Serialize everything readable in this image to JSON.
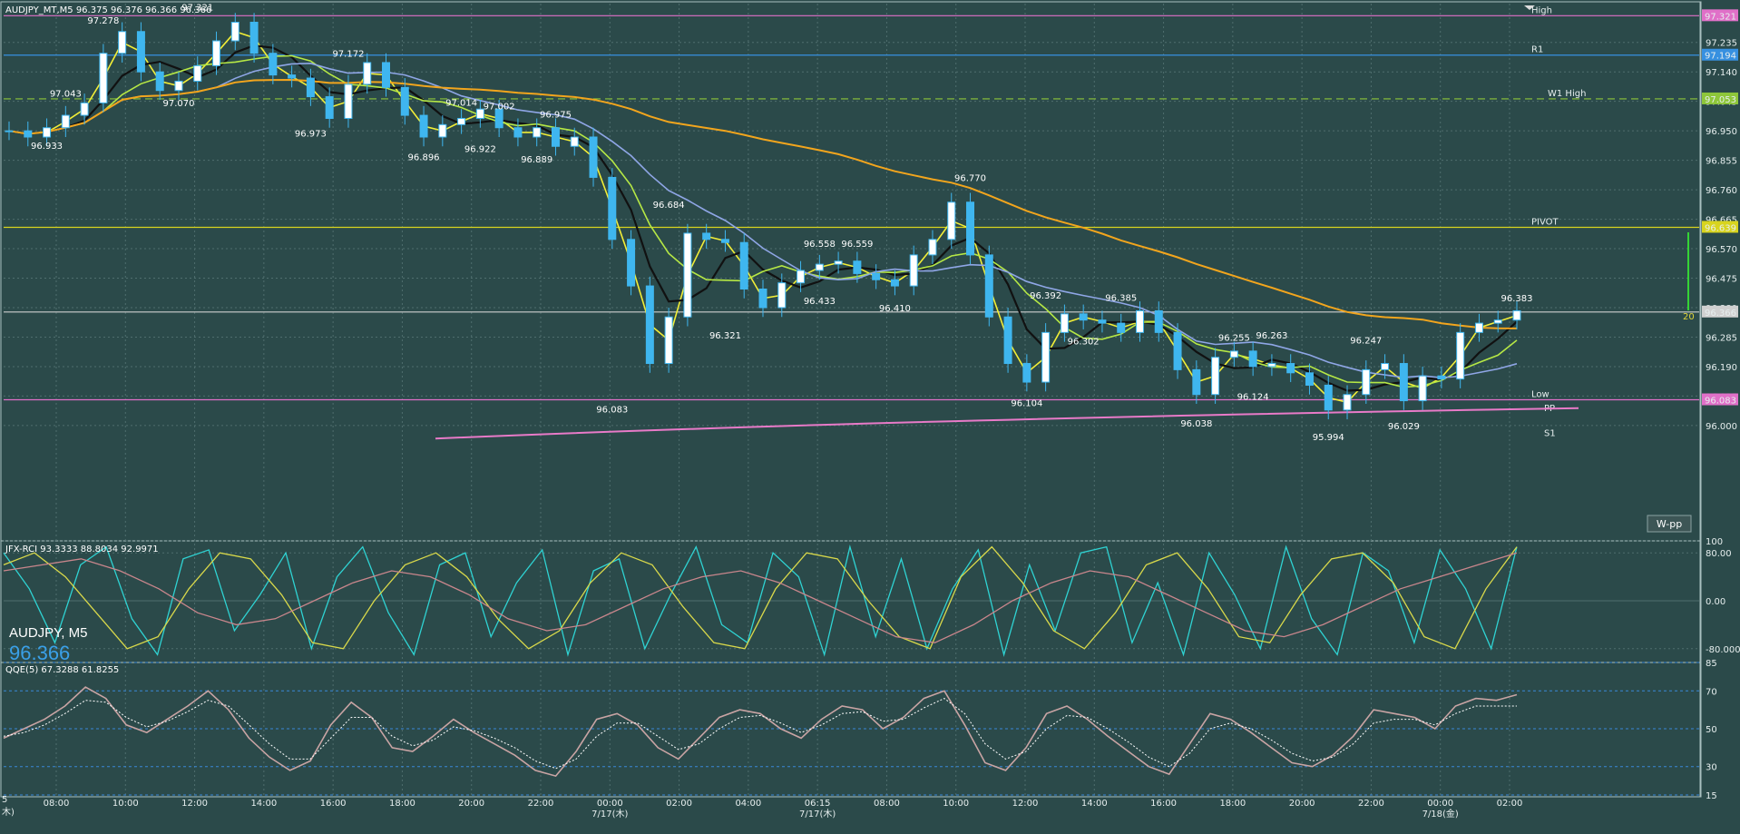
{
  "header": {
    "main_info": "AUDJPY_MT,M5  96.375 96.376 96.366 96.366",
    "rci_info": "JFX-RCI 93.3333 88.8034 92.9971",
    "qqe_info": "QQE(5) 67.3288 61.8255",
    "symbol_label": "AUDJPY, M5",
    "current_price": "96.366",
    "w_pp_button": "W-pp",
    "range_marker": "20"
  },
  "colors": {
    "background": "#2b4a4a",
    "grid": "#4f6e6e",
    "candle": "#3fb6ef",
    "black_line": "#111111",
    "yellow_line": "#f2ee37",
    "green_line": "#b6e845",
    "blue_line": "#8fa6e6",
    "orange_line": "#f2a51d",
    "high_line": "#e070c8",
    "r1_line": "#3790e0",
    "w1high_line": "#8ec63a",
    "pivot_line": "#d8d41e",
    "low_line": "#e070c8",
    "rci_cyan": "#2fd3d3",
    "rci_yellow": "#d9d94a",
    "rci_pink": "#c9868c",
    "qqe_main": "#c9a4a4",
    "qqe_signal": "#ffffff"
  },
  "chart_data": [
    {
      "type": "candlestick",
      "title": "AUDJPY_MT,M5",
      "ylim": [
        95.95,
        97.36
      ],
      "price_ticks": [
        "97.235",
        "97.140",
        "97.045",
        "96.950",
        "96.855",
        "96.760",
        "96.665",
        "96.570",
        "96.475",
        "96.380",
        "96.285",
        "96.190",
        "96.095",
        "96.000"
      ],
      "x_ticks": [
        {
          "label": "08:00",
          "date": ""
        },
        {
          "label": "10:00",
          "date": ""
        },
        {
          "label": "12:00",
          "date": ""
        },
        {
          "label": "14:00",
          "date": ""
        },
        {
          "label": "16:00",
          "date": ""
        },
        {
          "label": "18:00",
          "date": ""
        },
        {
          "label": "20:00",
          "date": ""
        },
        {
          "label": "22:00",
          "date": ""
        },
        {
          "label": "00:00",
          "date": "7/17(木)"
        },
        {
          "label": "02:00",
          "date": ""
        },
        {
          "label": "04:00",
          "date": ""
        },
        {
          "label": "06:15",
          "date": "7/17(木)"
        },
        {
          "label": "08:00",
          "date": ""
        },
        {
          "label": "10:00",
          "date": ""
        },
        {
          "label": "12:00",
          "date": ""
        },
        {
          "label": "14:00",
          "date": ""
        },
        {
          "label": "16:00",
          "date": ""
        },
        {
          "label": "18:00",
          "date": ""
        },
        {
          "label": "20:00",
          "date": ""
        },
        {
          "label": "22:00",
          "date": ""
        },
        {
          "label": "00:00",
          "date": "7/18(金)"
        },
        {
          "label": "02:00",
          "date": ""
        }
      ],
      "edge_labels": {
        "x_first": "5",
        "date_first": "木)"
      },
      "levels": [
        {
          "name": "High",
          "value": 97.321,
          "tag": "97.321",
          "color": "#e070c8",
          "dashed": false
        },
        {
          "name": "R1",
          "value": 97.194,
          "tag": "97.194",
          "color": "#3790e0",
          "dashed": false
        },
        {
          "name": "W1 High",
          "value": 97.053,
          "tag": "97.053",
          "color": "#8ec63a",
          "dashed": true
        },
        {
          "name": "PIVOT",
          "value": 96.639,
          "tag": "96.639",
          "color": "#d8d41e",
          "dashed": false
        },
        {
          "name": "",
          "value": 96.366,
          "tag": "96.366",
          "color": "#d0d0d0",
          "dashed": false
        },
        {
          "name": "Low",
          "value": 96.083,
          "tag": "96.083",
          "color": "#e070c8",
          "dashed": false
        }
      ],
      "aux_labels": [
        {
          "name": "PP",
          "value": 96.055,
          "color": "#8ec63a"
        },
        {
          "name": "S1",
          "value": 95.975,
          "color": "#3790e0"
        }
      ],
      "close_series": [
        96.95,
        96.93,
        96.96,
        97.0,
        97.04,
        97.2,
        97.27,
        97.14,
        97.08,
        97.11,
        97.16,
        97.24,
        97.3,
        97.2,
        97.13,
        97.12,
        97.06,
        96.99,
        97.1,
        97.17,
        97.09,
        97.0,
        96.93,
        96.97,
        96.99,
        97.02,
        96.96,
        96.93,
        96.96,
        96.9,
        96.93,
        96.8,
        96.6,
        96.45,
        96.2,
        96.35,
        96.62,
        96.6,
        96.59,
        96.44,
        96.38,
        96.46,
        96.5,
        96.52,
        96.53,
        96.49,
        96.47,
        96.45,
        96.55,
        96.6,
        96.72,
        96.55,
        96.35,
        96.2,
        96.14,
        96.3,
        96.36,
        96.34,
        96.33,
        96.3,
        96.37,
        96.3,
        96.18,
        96.1,
        96.22,
        96.24,
        96.19,
        96.2,
        96.17,
        96.13,
        96.05,
        96.1,
        96.18,
        96.2,
        96.08,
        96.16,
        96.15,
        96.3,
        96.33,
        96.34,
        96.37
      ],
      "annotations": [
        {
          "label": "97.321",
          "x": 10,
          "y": 97.321,
          "pos": "above"
        },
        {
          "label": "97.278",
          "x": 5,
          "y": 97.278,
          "pos": "above"
        },
        {
          "label": "97.172",
          "x": 18,
          "y": 97.172,
          "pos": "above"
        },
        {
          "label": "97.043",
          "x": 3,
          "y": 97.043,
          "pos": "above"
        },
        {
          "label": "97.070",
          "x": 9,
          "y": 97.07,
          "pos": "below"
        },
        {
          "label": "96.933",
          "x": 2,
          "y": 96.933,
          "pos": "below"
        },
        {
          "label": "96.973",
          "x": 16,
          "y": 96.973,
          "pos": "below"
        },
        {
          "label": "96.896",
          "x": 22,
          "y": 96.896,
          "pos": "below"
        },
        {
          "label": "97.014",
          "x": 24,
          "y": 97.014,
          "pos": "above"
        },
        {
          "label": "97.002",
          "x": 26,
          "y": 97.002,
          "pos": "above"
        },
        {
          "label": "96.922",
          "x": 25,
          "y": 96.922,
          "pos": "below"
        },
        {
          "label": "96.975",
          "x": 29,
          "y": 96.975,
          "pos": "above"
        },
        {
          "label": "96.889",
          "x": 28,
          "y": 96.889,
          "pos": "below"
        },
        {
          "label": "96.684",
          "x": 35,
          "y": 96.684,
          "pos": "above"
        },
        {
          "label": "96.083",
          "x": 32,
          "y": 96.083,
          "pos": "below"
        },
        {
          "label": "96.321",
          "x": 38,
          "y": 96.321,
          "pos": "below"
        },
        {
          "label": "96.558",
          "x": 43,
          "y": 96.558,
          "pos": "above"
        },
        {
          "label": "96.559",
          "x": 45,
          "y": 96.559,
          "pos": "above"
        },
        {
          "label": "96.433",
          "x": 43,
          "y": 96.433,
          "pos": "below"
        },
        {
          "label": "96.410",
          "x": 47,
          "y": 96.41,
          "pos": "below"
        },
        {
          "label": "96.770",
          "x": 51,
          "y": 96.77,
          "pos": "above"
        },
        {
          "label": "96.104",
          "x": 54,
          "y": 96.104,
          "pos": "below"
        },
        {
          "label": "96.392",
          "x": 55,
          "y": 96.392,
          "pos": "above"
        },
        {
          "label": "96.385",
          "x": 59,
          "y": 96.385,
          "pos": "above"
        },
        {
          "label": "96.302",
          "x": 57,
          "y": 96.302,
          "pos": "below"
        },
        {
          "label": "96.038",
          "x": 63,
          "y": 96.038,
          "pos": "below"
        },
        {
          "label": "96.255",
          "x": 65,
          "y": 96.255,
          "pos": "above"
        },
        {
          "label": "96.263",
          "x": 67,
          "y": 96.263,
          "pos": "above"
        },
        {
          "label": "96.124",
          "x": 66,
          "y": 96.124,
          "pos": "below"
        },
        {
          "label": "96.247",
          "x": 72,
          "y": 96.247,
          "pos": "above"
        },
        {
          "label": "95.994",
          "x": 70,
          "y": 95.994,
          "pos": "below"
        },
        {
          "label": "96.029",
          "x": 74,
          "y": 96.029,
          "pos": "below"
        },
        {
          "label": "96.383",
          "x": 80,
          "y": 96.383,
          "pos": "above"
        }
      ]
    },
    {
      "type": "line",
      "title": "JFX-RCI",
      "ylim": [
        -100,
        100
      ],
      "ticks": [
        "100",
        "80.00",
        "0.00",
        "-80.000"
      ],
      "series": [
        {
          "name": "RCI fast",
          "color": "#2fd3d3",
          "values": [
            80,
            20,
            -70,
            60,
            90,
            -30,
            -90,
            70,
            85,
            -50,
            10,
            80,
            -80,
            40,
            90,
            -20,
            -90,
            60,
            80,
            -60,
            30,
            85,
            -90,
            50,
            70,
            -80,
            10,
            90,
            -40,
            -70,
            80,
            40,
            -90,
            90,
            -60,
            70,
            -80,
            20,
            85,
            -90,
            60,
            -50,
            80,
            90,
            -70,
            30,
            -90,
            80,
            10,
            -80,
            90,
            -30,
            -90,
            80,
            50,
            -70,
            85,
            20,
            -80,
            90
          ]
        },
        {
          "name": "RCI mid",
          "color": "#d9d94a",
          "values": [
            60,
            80,
            40,
            -20,
            -80,
            -60,
            20,
            80,
            70,
            10,
            -70,
            -80,
            0,
            60,
            80,
            40,
            -30,
            -80,
            -50,
            30,
            80,
            60,
            -10,
            -70,
            -80,
            20,
            80,
            70,
            0,
            -60,
            -80,
            40,
            90,
            30,
            -50,
            -80,
            -20,
            60,
            80,
            20,
            -60,
            -70,
            10,
            70,
            80,
            30,
            -60,
            -80,
            20,
            90
          ]
        },
        {
          "name": "RCI slow",
          "color": "#c9868c",
          "values": [
            50,
            60,
            70,
            50,
            20,
            -20,
            -40,
            -30,
            0,
            30,
            50,
            40,
            10,
            -30,
            -50,
            -40,
            -10,
            20,
            40,
            50,
            30,
            0,
            -30,
            -60,
            -70,
            -40,
            0,
            30,
            50,
            40,
            10,
            -20,
            -50,
            -60,
            -40,
            -10,
            20,
            40,
            60,
            80
          ]
        }
      ]
    },
    {
      "type": "line",
      "title": "QQE(5)",
      "ylim": [
        15,
        85
      ],
      "ticks": [
        "85",
        "70",
        "50",
        "30",
        "15"
      ],
      "series": [
        {
          "name": "QQE",
          "color": "#c9a4a4",
          "values": [
            45,
            50,
            55,
            62,
            72,
            66,
            52,
            48,
            55,
            62,
            70,
            60,
            45,
            35,
            28,
            33,
            52,
            64,
            56,
            40,
            38,
            46,
            55,
            48,
            42,
            36,
            28,
            25,
            38,
            55,
            58,
            52,
            40,
            34,
            45,
            56,
            60,
            58,
            50,
            45,
            55,
            62,
            60,
            50,
            56,
            66,
            70,
            52,
            32,
            28,
            40,
            58,
            62,
            55,
            46,
            38,
            30,
            26,
            42,
            58,
            55,
            48,
            40,
            32,
            30,
            36,
            46,
            60,
            58,
            56,
            50,
            62,
            66,
            65,
            68
          ]
        },
        {
          "name": "Signal",
          "color": "#ffffff",
          "values": [
            46,
            48,
            52,
            58,
            65,
            64,
            56,
            51,
            54,
            59,
            65,
            62,
            52,
            42,
            34,
            34,
            45,
            56,
            56,
            46,
            41,
            44,
            51,
            49,
            45,
            40,
            33,
            29,
            34,
            46,
            53,
            53,
            46,
            39,
            42,
            50,
            56,
            57,
            53,
            48,
            52,
            58,
            59,
            54,
            55,
            61,
            66,
            58,
            42,
            34,
            38,
            50,
            57,
            56,
            50,
            43,
            35,
            30,
            37,
            50,
            53,
            50,
            44,
            37,
            33,
            35,
            42,
            53,
            55,
            55,
            52,
            58,
            62,
            62,
            62
          ]
        }
      ]
    }
  ]
}
